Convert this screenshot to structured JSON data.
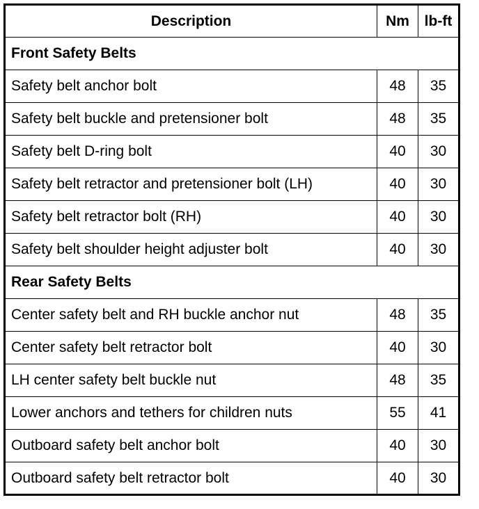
{
  "headers": {
    "description": "Description",
    "nm": "Nm",
    "lbft": "lb-ft"
  },
  "sections": [
    {
      "title": "Front Safety Belts",
      "rows": [
        {
          "description": "Safety belt anchor bolt",
          "nm": "48",
          "lbft": "35"
        },
        {
          "description": "Safety belt buckle and pretensioner bolt",
          "nm": "48",
          "lbft": "35"
        },
        {
          "description": "Safety belt D-ring bolt",
          "nm": "40",
          "lbft": "30"
        },
        {
          "description": "Safety belt retractor and pretensioner bolt (LH)",
          "nm": "40",
          "lbft": "30"
        },
        {
          "description": "Safety belt retractor bolt (RH)",
          "nm": "40",
          "lbft": "30"
        },
        {
          "description": "Safety belt shoulder height adjuster bolt",
          "nm": "40",
          "lbft": "30"
        }
      ]
    },
    {
      "title": "Rear Safety Belts",
      "rows": [
        {
          "description": "Center safety belt and RH buckle anchor nut",
          "nm": "48",
          "lbft": "35"
        },
        {
          "description": "Center safety belt retractor bolt",
          "nm": "40",
          "lbft": "30"
        },
        {
          "description": "LH center safety belt buckle nut",
          "nm": "48",
          "lbft": "35"
        },
        {
          "description": "Lower anchors and tethers for children nuts",
          "nm": "55",
          "lbft": "41"
        },
        {
          "description": "Outboard safety belt anchor bolt",
          "nm": "40",
          "lbft": "30"
        },
        {
          "description": "Outboard safety belt retractor bolt",
          "nm": "40",
          "lbft": "30"
        }
      ]
    }
  ]
}
